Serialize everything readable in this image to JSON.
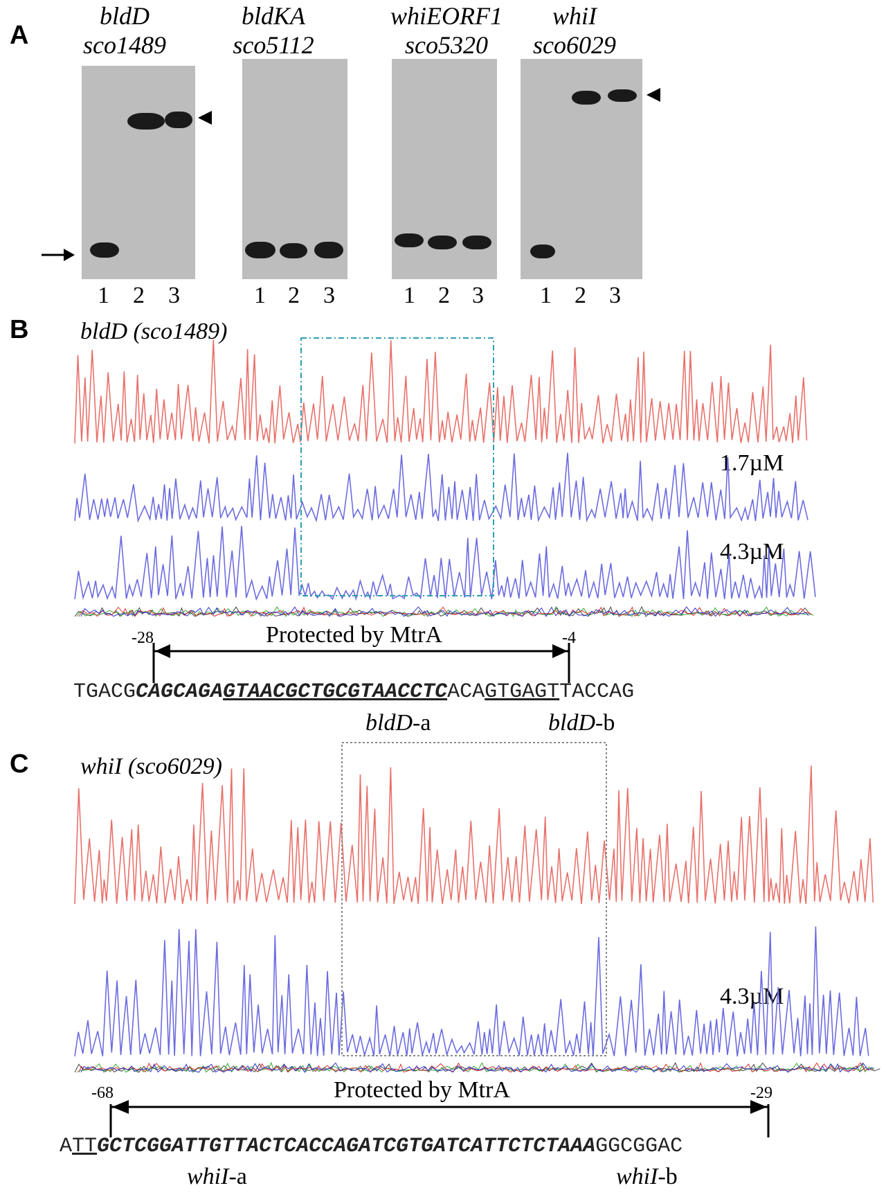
{
  "panel_a": {
    "letter": "A",
    "gels": [
      {
        "gene": "bldD",
        "locus": "sco1489",
        "lanes": [
          "1",
          "2",
          "3"
        ]
      },
      {
        "gene": "bldKA",
        "locus": "sco5112",
        "lanes": [
          "1",
          "2",
          "3"
        ]
      },
      {
        "gene": "whiEORF1",
        "locus": "sco5320",
        "lanes": [
          "1",
          "2",
          "3"
        ]
      },
      {
        "gene": "whiI",
        "locus": "sco6029",
        "lanes": [
          "1",
          "2",
          "3"
        ]
      }
    ]
  },
  "panel_b": {
    "letter": "B",
    "gene": "bldD",
    "locus": "(sco1489)",
    "concentrations": [
      "1.7µM",
      "4.3µM"
    ],
    "protected_label": "Protected by MtrA",
    "start_pos": "-28",
    "end_pos": "-4",
    "sequence": {
      "plain_left": "TGACG",
      "bold_a": "CAGCAGA",
      "bold_b": "GTAACGCTGCGTAACCTC",
      "plain_mid": "ACA",
      "plain_ul": "GTGAGT",
      "plain_right": "TACCAG"
    },
    "site_a_gene": "bldD",
    "site_a_suffix": "-a",
    "site_b_gene": "bldD",
    "site_b_suffix": "-b"
  },
  "panel_c": {
    "letter": "C",
    "gene": "whiI",
    "locus": "(sco6029)",
    "concentrations": [
      "4.3µM"
    ],
    "protected_label": "Protected by MtrA",
    "start_pos": "-68",
    "end_pos": "-29",
    "sequence": {
      "plain_left": "A",
      "plain_ul": "TT",
      "bold": "GCTCGGATTGTTACTCACCAGATCGTGATCATTCTCTAAA",
      "plain_right": "GGCGGAC"
    },
    "site_a_gene": "whiI",
    "site_a_suffix": "-a",
    "site_b_gene": "whiI",
    "site_b_suffix": "-b"
  },
  "colors": {
    "control_trace": "#e8706a",
    "protein_trace": "#6b6be0",
    "gel_bg": "#bdbdbd",
    "band": "#1a1a1a"
  }
}
